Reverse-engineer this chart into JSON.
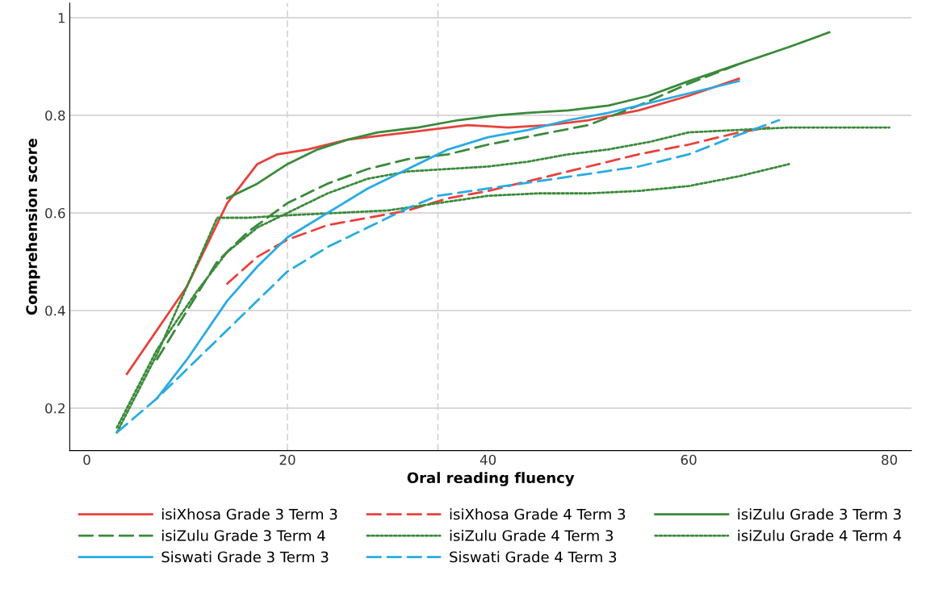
{
  "chart_data": {
    "type": "line",
    "xlabel": "Oral reading fluency",
    "ylabel": "Comprehension score",
    "xlim": [
      -1.7,
      82.2
    ],
    "ylim": [
      0.113,
      1.03
    ],
    "xticks": [
      0,
      20,
      40,
      60,
      80
    ],
    "yticks": [
      0.2,
      0.4,
      0.6,
      0.8,
      1
    ],
    "grid": "y",
    "legend": "bottom",
    "marker": "none",
    "ref_lines": [
      {
        "axis": "x",
        "value": 20,
        "color": "#cccccc",
        "line_style": "dashed"
      },
      {
        "axis": "x",
        "value": 35,
        "color": "#cccccc",
        "line_style": "dashed"
      }
    ],
    "series": [
      {
        "name": "isiXhosa Grade 3 Term 3",
        "color": "#e8413c",
        "line_style": "solid",
        "x": [
          4,
          10,
          14,
          17,
          19,
          22,
          26,
          30,
          34,
          38,
          42,
          46,
          50,
          55,
          60,
          65
        ],
        "values": [
          0.27,
          0.45,
          0.62,
          0.7,
          0.72,
          0.73,
          0.75,
          0.76,
          0.77,
          0.78,
          0.775,
          0.78,
          0.79,
          0.81,
          0.84,
          0.875
        ]
      },
      {
        "name": "isiXhosa Grade 4 Term 3",
        "color": "#e8413c",
        "line_style": "dashed",
        "x": [
          14,
          17,
          20,
          24,
          28,
          32,
          36,
          40,
          45,
          50,
          55,
          60,
          65,
          68
        ],
        "values": [
          0.455,
          0.51,
          0.545,
          0.575,
          0.59,
          0.605,
          0.63,
          0.645,
          0.67,
          0.695,
          0.72,
          0.74,
          0.765,
          0.775
        ]
      },
      {
        "name": "isiZulu Grade 3 Term 3",
        "color": "#3a8a3a",
        "line_style": "solid",
        "x": [
          14,
          17,
          20,
          23,
          26,
          29,
          33,
          37,
          41,
          44,
          48,
          52,
          56,
          60,
          65,
          70,
          74
        ],
        "values": [
          0.63,
          0.66,
          0.7,
          0.73,
          0.75,
          0.765,
          0.775,
          0.79,
          0.8,
          0.805,
          0.81,
          0.82,
          0.84,
          0.87,
          0.905,
          0.94,
          0.97
        ]
      },
      {
        "name": "isiZulu Grade 3 Term 4",
        "color": "#3a8a3a",
        "line_style": "dashed",
        "x": [
          7,
          10,
          13,
          16,
          20,
          24,
          28,
          32,
          36,
          40,
          45,
          50,
          55,
          60,
          65
        ],
        "values": [
          0.3,
          0.4,
          0.5,
          0.56,
          0.62,
          0.66,
          0.69,
          0.71,
          0.72,
          0.74,
          0.76,
          0.78,
          0.82,
          0.865,
          0.905
        ]
      },
      {
        "name": "isiZulu Grade 4 Term 3",
        "color": "#3a8a3a",
        "line_style": "dotted",
        "x": [
          3,
          7,
          11,
          14,
          17,
          20,
          24,
          28,
          32,
          36,
          40,
          44,
          48,
          52,
          56,
          60,
          65,
          70,
          80
        ],
        "values": [
          0.16,
          0.32,
          0.44,
          0.52,
          0.57,
          0.6,
          0.64,
          0.67,
          0.685,
          0.69,
          0.695,
          0.705,
          0.72,
          0.73,
          0.745,
          0.765,
          0.77,
          0.775,
          0.775
        ]
      },
      {
        "name": "isiZulu Grade 4 Term 4",
        "color": "#3a8a3a",
        "line_style": "dotted",
        "x": [
          3,
          7,
          10,
          13,
          16,
          20,
          25,
          30,
          35,
          40,
          45,
          50,
          55,
          60,
          65,
          70
        ],
        "values": [
          0.15,
          0.31,
          0.45,
          0.59,
          0.59,
          0.595,
          0.6,
          0.605,
          0.62,
          0.635,
          0.64,
          0.64,
          0.645,
          0.655,
          0.675,
          0.7
        ]
      },
      {
        "name": "Siswati Grade 3 Term 3",
        "color": "#29abe2",
        "line_style": "solid",
        "x": [
          7,
          10,
          14,
          17,
          20,
          24,
          28,
          32,
          36,
          40,
          44,
          48,
          52,
          56,
          60,
          65
        ],
        "values": [
          0.22,
          0.3,
          0.42,
          0.49,
          0.55,
          0.6,
          0.65,
          0.69,
          0.73,
          0.755,
          0.77,
          0.79,
          0.805,
          0.825,
          0.845,
          0.87
        ]
      },
      {
        "name": "Siswati Grade 4 Term 3",
        "color": "#29abe2",
        "line_style": "dashed",
        "x": [
          3,
          7,
          11,
          15,
          20,
          24,
          28,
          32,
          35,
          40,
          45,
          50,
          55,
          60,
          65,
          69
        ],
        "values": [
          0.15,
          0.22,
          0.3,
          0.38,
          0.48,
          0.53,
          0.57,
          0.61,
          0.635,
          0.65,
          0.665,
          0.68,
          0.695,
          0.72,
          0.76,
          0.79
        ]
      }
    ]
  }
}
